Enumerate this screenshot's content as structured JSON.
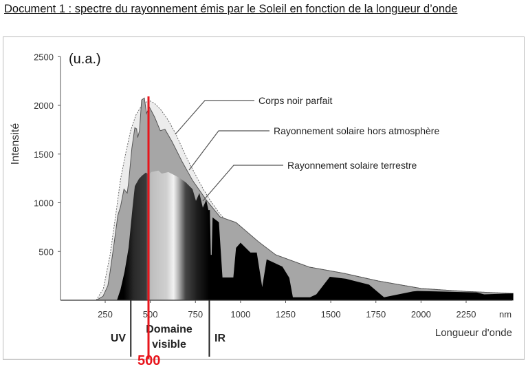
{
  "document": {
    "title": "Document 1 : spectre du rayonnement émis par le Soleil en fonction de la longueur d’onde"
  },
  "chart_data": {
    "type": "area",
    "title": "",
    "ylabel": "Intensité",
    "yunit": "(u.a.)",
    "xlabel": "Longueur d'onde",
    "xunit": "nm",
    "xlim": [
      0,
      2510
    ],
    "ylim": [
      0,
      2500
    ],
    "xticks": [
      250,
      500,
      750,
      1000,
      1250,
      1500,
      1750,
      2000,
      2250
    ],
    "yticks": [
      500,
      1000,
      1500,
      2000,
      2500
    ],
    "grid": false,
    "series": [
      {
        "name": "Corps noir parfait",
        "style": "dotted",
        "color": "#ececec",
        "points": [
          [
            200,
            0
          ],
          [
            240,
            120
          ],
          [
            277,
            465
          ],
          [
            310,
            900
          ],
          [
            335,
            1240
          ],
          [
            365,
            1520
          ],
          [
            391,
            1740
          ],
          [
            420,
            1900
          ],
          [
            448,
            1985
          ],
          [
            490,
            2055
          ],
          [
            524,
            2020
          ],
          [
            560,
            1950
          ],
          [
            600,
            1845
          ],
          [
            640,
            1710
          ],
          [
            677,
            1560
          ],
          [
            715,
            1410
          ],
          [
            753,
            1280
          ],
          [
            790,
            1150
          ],
          [
            830,
            1030
          ],
          [
            880,
            900
          ],
          [
            930,
            790
          ],
          [
            975,
            740
          ],
          [
            1000,
            720
          ],
          [
            1100,
            590
          ],
          [
            1195,
            466
          ],
          [
            1381,
            340
          ],
          [
            1572,
            276
          ],
          [
            1762,
            198
          ],
          [
            2002,
            120
          ],
          [
            2250,
            90
          ],
          [
            2498,
            70
          ]
        ]
      },
      {
        "name": "Rayonnement solaire hors atmosphère",
        "style": "solid",
        "color": "#a6a6a6",
        "points": [
          [
            200,
            0
          ],
          [
            238,
            40
          ],
          [
            265,
            150
          ],
          [
            277,
            290
          ],
          [
            296,
            540
          ],
          [
            320,
            870
          ],
          [
            335,
            960
          ],
          [
            354,
            1140
          ],
          [
            372,
            1100
          ],
          [
            380,
            1210
          ],
          [
            398,
            1560
          ],
          [
            414,
            1770
          ],
          [
            424,
            1760
          ],
          [
            430,
            1670
          ],
          [
            440,
            1740
          ],
          [
            452,
            2055
          ],
          [
            467,
            2075
          ],
          [
            479,
            1915
          ],
          [
            494,
            1985
          ],
          [
            524,
            1880
          ],
          [
            555,
            1740
          ],
          [
            581,
            1755
          ],
          [
            620,
            1630
          ],
          [
            677,
            1420
          ],
          [
            734,
            1230
          ],
          [
            810,
            1030
          ],
          [
            886,
            855
          ],
          [
            975,
            798
          ],
          [
            1100,
            600
          ],
          [
            1195,
            466
          ],
          [
            1381,
            340
          ],
          [
            1572,
            276
          ],
          [
            1762,
            198
          ],
          [
            2002,
            120
          ],
          [
            2250,
            90
          ],
          [
            2498,
            70
          ],
          [
            2510,
            70
          ]
        ]
      },
      {
        "name": "Rayonnement solaire terrestre",
        "style": "solid",
        "color": "#000000",
        "points": [
          [
            315,
            0
          ],
          [
            335,
            110
          ],
          [
            357,
            290
          ],
          [
            380,
            540
          ],
          [
            391,
            750
          ],
          [
            402,
            960
          ],
          [
            414,
            1170
          ],
          [
            437,
            1245
          ],
          [
            455,
            1280
          ],
          [
            475,
            1310
          ],
          [
            494,
            1290
          ],
          [
            505,
            1315
          ],
          [
            545,
            1330
          ],
          [
            563,
            1300
          ],
          [
            600,
            1315
          ],
          [
            658,
            1260
          ],
          [
            696,
            1210
          ],
          [
            734,
            1140
          ],
          [
            753,
            1020
          ],
          [
            772,
            1100
          ],
          [
            791,
            950
          ],
          [
            810,
            1030
          ],
          [
            822,
            925
          ],
          [
            830,
            925
          ],
          [
            835,
            466
          ],
          [
            840,
            466
          ],
          [
            845,
            850
          ],
          [
            880,
            800
          ],
          [
            900,
            233
          ],
          [
            925,
            233
          ],
          [
            960,
            233
          ],
          [
            975,
            537
          ],
          [
            1000,
            590
          ],
          [
            1055,
            490
          ],
          [
            1090,
            490
          ],
          [
            1120,
            134
          ],
          [
            1145,
            420
          ],
          [
            1232,
            345
          ],
          [
            1270,
            230
          ],
          [
            1290,
            30
          ],
          [
            1385,
            30
          ],
          [
            1420,
            60
          ],
          [
            1495,
            240
          ],
          [
            1585,
            220
          ],
          [
            1712,
            160
          ],
          [
            1795,
            30
          ],
          [
            1955,
            90
          ],
          [
            1980,
            95
          ],
          [
            2310,
            80
          ],
          [
            2350,
            60
          ],
          [
            2500,
            70
          ],
          [
            2510,
            70
          ],
          [
            2510,
            0
          ]
        ]
      }
    ],
    "annotations": {
      "marker_value": "500",
      "marker_nm": 490,
      "marker_color": "#e8141b",
      "boundaries_nm": [
        390,
        825
      ],
      "region_uv": "UV",
      "region_visible_line1": "Domaine",
      "region_visible_line2": "visible",
      "region_ir": "IR"
    }
  }
}
